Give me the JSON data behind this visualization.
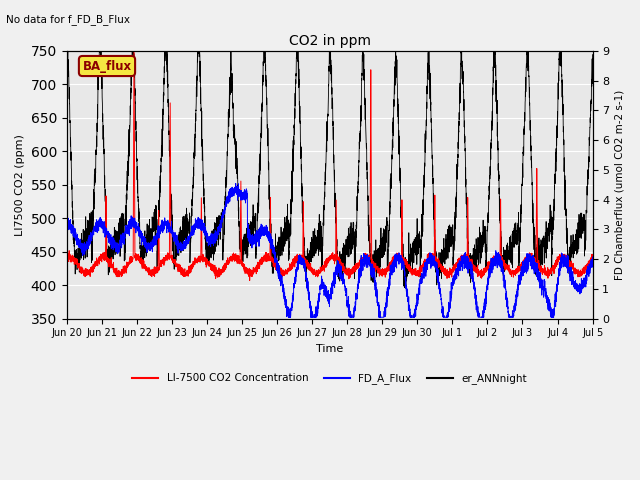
{
  "title": "CO2 in ppm",
  "top_left_text": "No data for f_FD_B_Flux",
  "annotation_box": "BA_flux",
  "ylabel_left": "LI7500 CO2 (ppm)",
  "ylabel_right": "FD Chamberflux (umol CO2 m-2 s-1)",
  "xlabel": "Time",
  "ylim_left": [
    350,
    750
  ],
  "ylim_right": [
    0.0,
    9.0
  ],
  "yticks_left": [
    350,
    400,
    450,
    500,
    550,
    600,
    650,
    700,
    750
  ],
  "yticks_right": [
    0.0,
    1.0,
    2.0,
    3.0,
    4.0,
    5.0,
    6.0,
    7.0,
    8.0,
    9.0
  ],
  "xticklabels": [
    "Jun 20",
    "Jun 21",
    "Jun 22",
    "Jun 23",
    "Jun 24",
    "Jun 25",
    "Jun 26",
    "Jun 27",
    "Jun 28",
    "Jun 29",
    "Jun 30",
    "Jul 1",
    "Jul 2",
    "Jul 3",
    "Jul 4",
    "Jul 5"
  ],
  "legend_entries": [
    {
      "label": "LI-7500 CO2 Concentration",
      "color": "red"
    },
    {
      "label": "FD_A_Flux",
      "color": "blue"
    },
    {
      "label": "er_ANNnight",
      "color": "black"
    }
  ],
  "background_color": "#f0f0f0",
  "plot_bg_color": "#e8e8e8",
  "annotation_box_bg": "#f5e642",
  "annotation_box_edge": "#8B0000",
  "figsize": [
    6.4,
    4.8
  ],
  "dpi": 100
}
